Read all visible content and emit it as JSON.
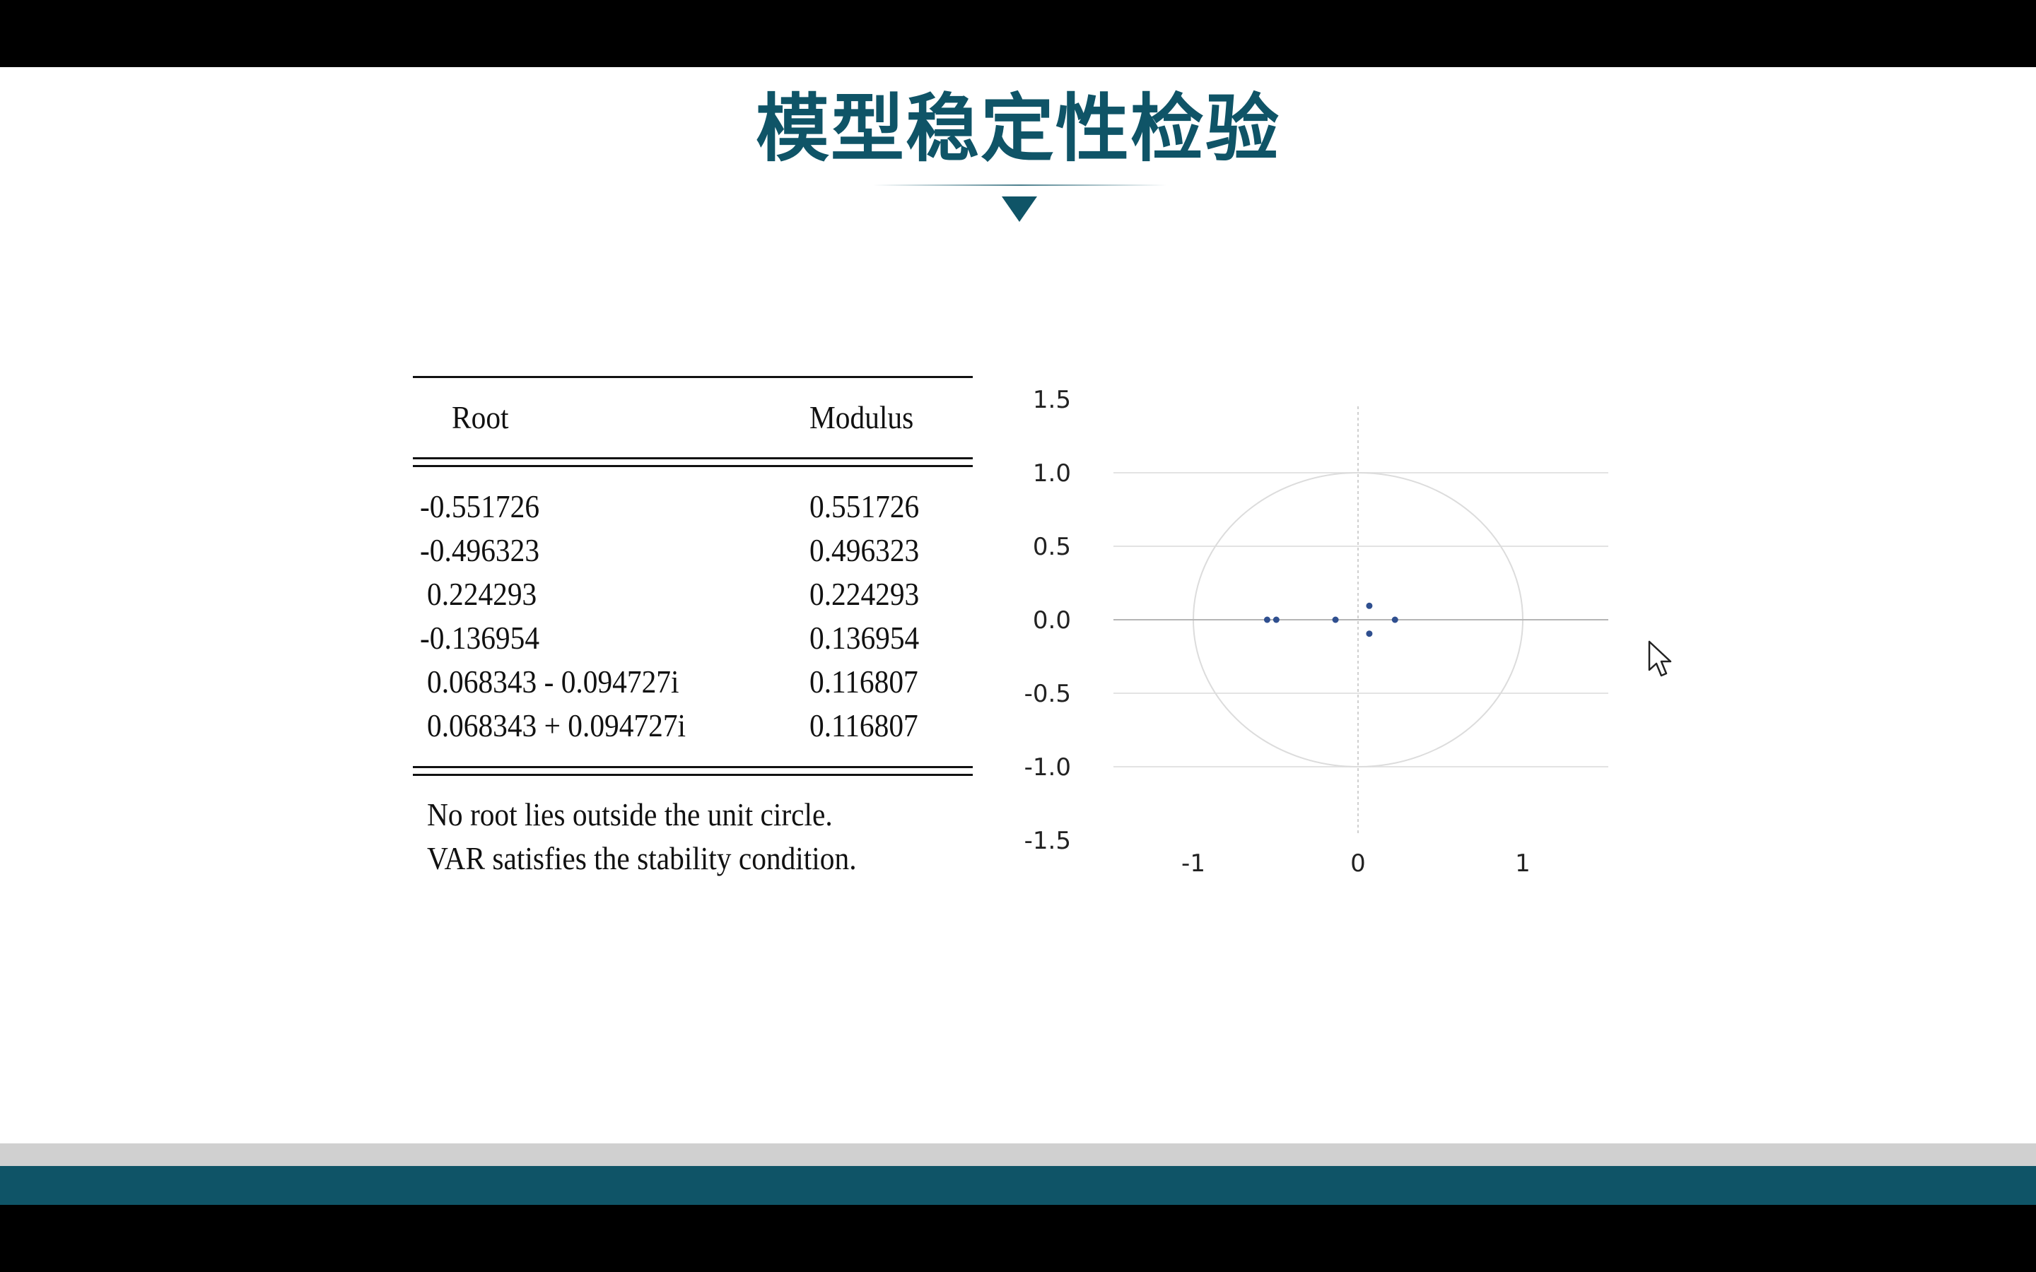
{
  "slide": {
    "title": "模型稳定性检验"
  },
  "table": {
    "headers": [
      "Root",
      "Modulus"
    ],
    "rows": [
      [
        "-0.551726",
        "0.551726"
      ],
      [
        "-0.496323",
        "0.496323"
      ],
      [
        " 0.224293",
        "0.224293"
      ],
      [
        "-0.136954",
        "0.136954"
      ],
      [
        " 0.068343 - 0.094727i",
        "0.116807"
      ],
      [
        " 0.068343 + 0.094727i",
        "0.116807"
      ]
    ],
    "notes": [
      "No root lies outside the unit circle.",
      "VAR satisfies the stability condition."
    ]
  },
  "chart_data": {
    "type": "scatter",
    "title": "",
    "xlabel": "",
    "ylabel": "",
    "xlim": [
      -1.5,
      1.5
    ],
    "ylim": [
      -1.5,
      1.5
    ],
    "x_ticks": [
      -1,
      0,
      1
    ],
    "y_ticks": [
      "1.5",
      "1.0",
      "0.5",
      "0.0",
      "-0.5",
      "-1.0",
      "-1.5"
    ],
    "grid": true,
    "unit_circle": true,
    "marker_color": "#2f4f8f",
    "series": [
      {
        "points": [
          {
            "x": -0.551726,
            "y": 0
          },
          {
            "x": -0.496323,
            "y": 0
          },
          {
            "x": 0.224293,
            "y": 0
          },
          {
            "x": -0.136954,
            "y": 0
          },
          {
            "x": 0.068343,
            "y": -0.094727
          },
          {
            "x": 0.068343,
            "y": 0.094727
          }
        ]
      }
    ]
  },
  "colors": {
    "accent": "#0f5467",
    "footer_gray": "#d0d0d0",
    "background": "#ffffff"
  }
}
